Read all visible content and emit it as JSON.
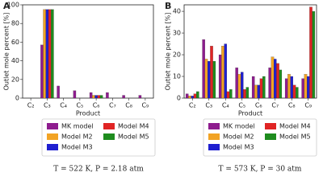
{
  "chart_data": [
    {
      "type": "bar",
      "panel_label": "A",
      "ylabel": "Outlet mole percent [%]",
      "xlabel": "Product",
      "caption": "T = 522 K, P = 2.18 atm",
      "categories": [
        "C₂",
        "C₃",
        "C₄",
        "C₅",
        "C₆",
        "C₇",
        "C₈",
        "C₉"
      ],
      "series": [
        {
          "name": "MK model",
          "color": "#8e1c8e",
          "values": [
            0,
            57,
            13,
            8,
            6,
            6,
            3,
            3
          ]
        },
        {
          "name": "Model M2",
          "color": "#f2a324",
          "values": [
            0,
            95,
            0,
            0,
            3,
            0,
            0,
            0
          ]
        },
        {
          "name": "Model M3",
          "color": "#1f1fd0",
          "values": [
            0,
            95,
            0,
            0,
            3,
            0,
            0,
            0
          ]
        },
        {
          "name": "Model M4",
          "color": "#e02424",
          "values": [
            0,
            95,
            0,
            0,
            3,
            0,
            0,
            0
          ]
        },
        {
          "name": "Model M5",
          "color": "#1e8c1e",
          "values": [
            0,
            95,
            0,
            0,
            3,
            0,
            0,
            0
          ]
        }
      ],
      "ylim": [
        0,
        100
      ],
      "yticks": [
        0,
        20,
        40,
        60,
        80,
        100
      ]
    },
    {
      "type": "bar",
      "panel_label": "B",
      "ylabel": "Outlet mole percent [%]",
      "xlabel": "Product",
      "caption": "T = 573 K, P = 30 atm",
      "categories": [
        "C₂",
        "C₃",
        "C₄",
        "C₅",
        "C₆",
        "C₇",
        "C₈",
        "C₉"
      ],
      "series": [
        {
          "name": "MK model",
          "color": "#8e1c8e",
          "values": [
            2,
            27,
            20,
            14,
            10,
            14,
            9,
            9
          ]
        },
        {
          "name": "Model M2",
          "color": "#f2a324",
          "values": [
            1,
            18,
            24,
            11,
            6,
            19,
            11,
            11
          ]
        },
        {
          "name": "Model M3",
          "color": "#1f1fd0",
          "values": [
            1,
            17,
            25,
            12,
            6,
            18,
            10,
            10
          ]
        },
        {
          "name": "Model M4",
          "color": "#e02424",
          "values": [
            2,
            24,
            3,
            4,
            9,
            16,
            6,
            42
          ]
        },
        {
          "name": "Model M5",
          "color": "#1e8c1e",
          "values": [
            3,
            17,
            4,
            5,
            10,
            13,
            5,
            40
          ]
        }
      ],
      "ylim": [
        0,
        43
      ],
      "yticks": [
        0,
        10,
        20,
        30,
        40
      ]
    }
  ]
}
